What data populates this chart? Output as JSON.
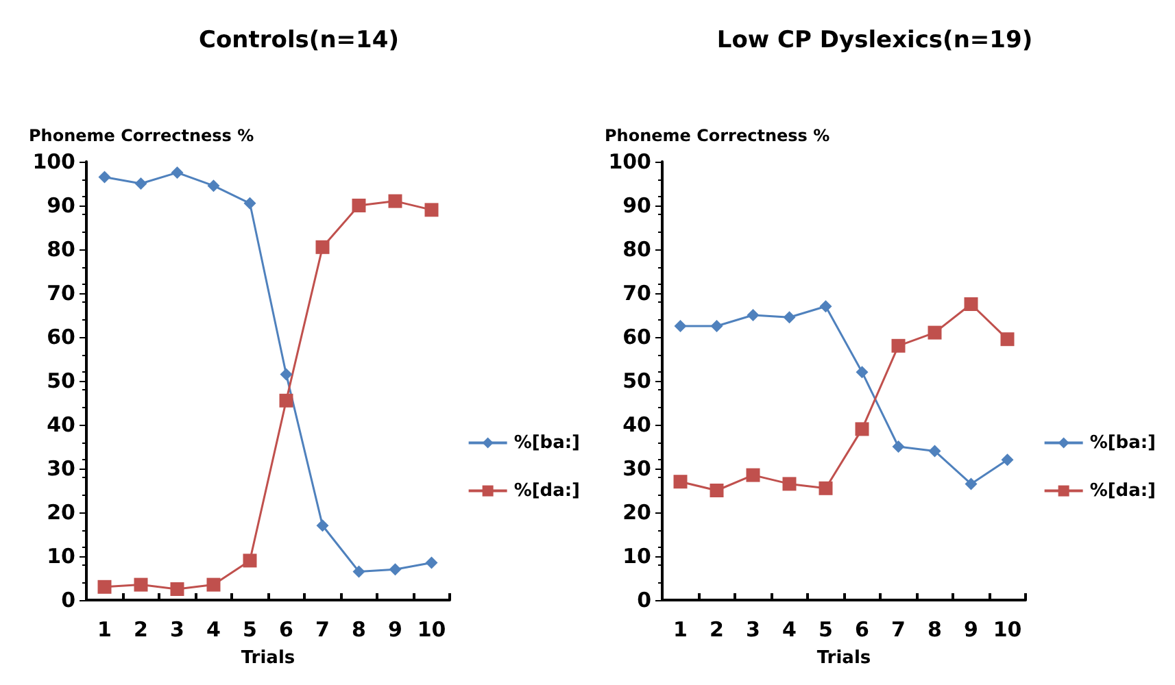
{
  "chart_data": [
    {
      "type": "line",
      "title": "Controls(n=14)",
      "ylabel": "Phoneme Correctness %",
      "xlabel": "Trials",
      "categories": [
        "1",
        "2",
        "3",
        "4",
        "5",
        "6",
        "7",
        "8",
        "9",
        "10"
      ],
      "ylim": [
        0,
        100
      ],
      "yticks": [
        0,
        10,
        20,
        30,
        40,
        50,
        60,
        70,
        80,
        90,
        100
      ],
      "grid": false,
      "legend": "right",
      "series": [
        {
          "name": "%[ba:]",
          "color": "#4f81bd",
          "marker": "diamond",
          "values": [
            96.5,
            95,
            97.5,
            94.5,
            90.5,
            51.5,
            17,
            6.5,
            7,
            8.5
          ]
        },
        {
          "name": "%[da:]",
          "color": "#c0504d",
          "marker": "square",
          "values": [
            3,
            3.5,
            2.5,
            3.5,
            9,
            45.5,
            80.5,
            90,
            91,
            89
          ]
        }
      ]
    },
    {
      "type": "line",
      "title": "Low CP Dyslexics(n=19)",
      "ylabel": "Phoneme Correctness %",
      "xlabel": "Trials",
      "categories": [
        "1",
        "2",
        "3",
        "4",
        "5",
        "6",
        "7",
        "8",
        "9",
        "10"
      ],
      "ylim": [
        0,
        100
      ],
      "yticks": [
        0,
        10,
        20,
        30,
        40,
        50,
        60,
        70,
        80,
        90,
        100
      ],
      "grid": false,
      "legend": "right",
      "series": [
        {
          "name": "%[ba:]",
          "color": "#4f81bd",
          "marker": "diamond",
          "values": [
            62.5,
            62.5,
            65,
            64.5,
            67,
            52,
            35,
            34,
            26.5,
            32
          ]
        },
        {
          "name": "%[da:]",
          "color": "#c0504d",
          "marker": "square",
          "values": [
            27,
            25,
            28.5,
            26.5,
            25.5,
            39,
            58,
            61,
            67.5,
            59.5
          ]
        }
      ]
    }
  ]
}
